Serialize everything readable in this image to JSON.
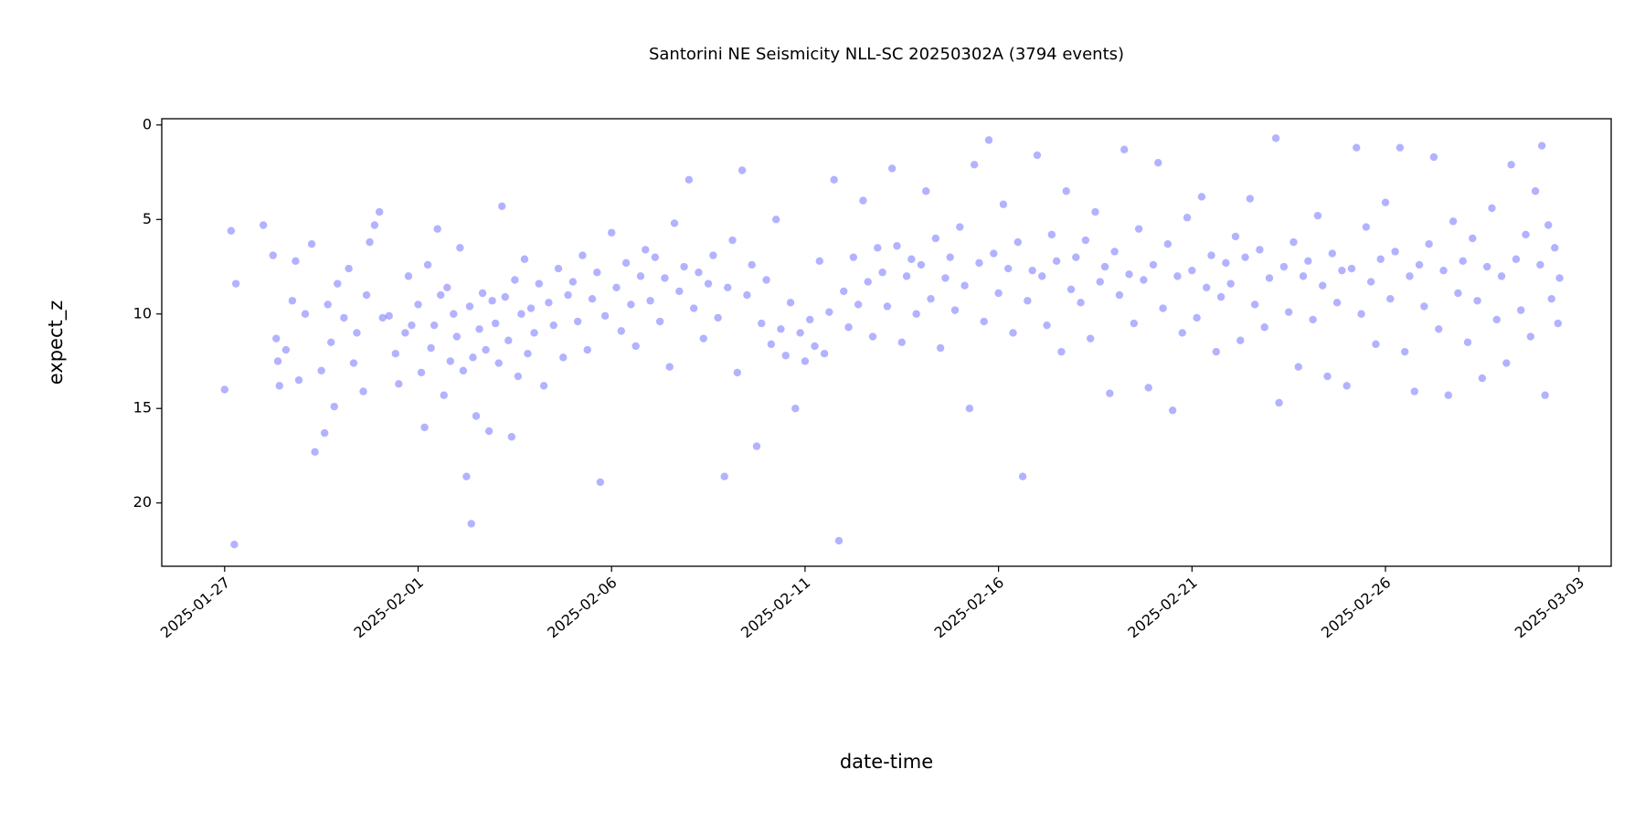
{
  "chart_data": {
    "type": "scatter",
    "title": "Santorini NE Seismicity NLL-SC 20250302A (3794 events)",
    "xlabel": "date-time",
    "ylabel": "expect_z",
    "color": "#0000ff",
    "xlim": [
      "2025-01-25T09:00",
      "2025-03-03T20:00"
    ],
    "xticks": [
      "2025-01-27",
      "2025-02-01",
      "2025-02-06",
      "2025-02-11",
      "2025-02-16",
      "2025-02-21",
      "2025-02-26",
      "2025-03-03"
    ],
    "ylim": [
      23.35,
      -0.33
    ],
    "yticks": [
      0,
      5,
      10,
      15,
      20
    ],
    "x": [
      "2025-01-27T00:00",
      "2025-01-27T04:00",
      "2025-01-27T06:00",
      "2025-01-27T07:00",
      "2025-01-28T00:00",
      "2025-01-28T06:00",
      "2025-01-28T08:00",
      "2025-01-28T09:00",
      "2025-01-28T10:00",
      "2025-01-28T14:00",
      "2025-01-28T18:00",
      "2025-01-28T20:00",
      "2025-01-28T22:00",
      "2025-01-29T02:00",
      "2025-01-29T06:00",
      "2025-01-29T08:00",
      "2025-01-29T12:00",
      "2025-01-29T14:00",
      "2025-01-29T16:00",
      "2025-01-29T18:00",
      "2025-01-29T20:00",
      "2025-01-29T22:00",
      "2025-01-30T02:00",
      "2025-01-30T05:00",
      "2025-01-30T08:00",
      "2025-01-30T10:00",
      "2025-01-30T14:00",
      "2025-01-30T16:00",
      "2025-01-30T18:00",
      "2025-01-30T21:00",
      "2025-01-31T00:00",
      "2025-01-31T02:00",
      "2025-01-31T06:00",
      "2025-01-31T10:00",
      "2025-01-31T12:00",
      "2025-01-31T16:00",
      "2025-01-31T18:00",
      "2025-01-31T20:00",
      "2025-02-01T00:00",
      "2025-02-01T02:00",
      "2025-02-01T04:00",
      "2025-02-01T06:00",
      "2025-02-01T08:00",
      "2025-02-01T10:00",
      "2025-02-01T12:00",
      "2025-02-01T14:00",
      "2025-02-01T16:00",
      "2025-02-01T18:00",
      "2025-02-01T20:00",
      "2025-02-01T22:00",
      "2025-02-02T00:00",
      "2025-02-02T02:00",
      "2025-02-02T04:00",
      "2025-02-02T06:00",
      "2025-02-02T08:00",
      "2025-02-02T09:00",
      "2025-02-02T10:00",
      "2025-02-02T12:00",
      "2025-02-02T14:00",
      "2025-02-02T16:00",
      "2025-02-02T18:00",
      "2025-02-02T20:00",
      "2025-02-02T22:00",
      "2025-02-03T00:00",
      "2025-02-03T02:00",
      "2025-02-03T04:00",
      "2025-02-03T06:00",
      "2025-02-03T08:00",
      "2025-02-03T10:00",
      "2025-02-03T12:00",
      "2025-02-03T14:00",
      "2025-02-03T16:00",
      "2025-02-03T18:00",
      "2025-02-03T20:00",
      "2025-02-03T22:00",
      "2025-02-04T00:00",
      "2025-02-04T03:00",
      "2025-02-04T06:00",
      "2025-02-04T09:00",
      "2025-02-04T12:00",
      "2025-02-04T15:00",
      "2025-02-04T18:00",
      "2025-02-04T21:00",
      "2025-02-05T00:00",
      "2025-02-05T03:00",
      "2025-02-05T06:00",
      "2025-02-05T09:00",
      "2025-02-05T12:00",
      "2025-02-05T15:00",
      "2025-02-05T17:00",
      "2025-02-05T20:00",
      "2025-02-06T00:00",
      "2025-02-06T03:00",
      "2025-02-06T06:00",
      "2025-02-06T09:00",
      "2025-02-06T12:00",
      "2025-02-06T15:00",
      "2025-02-06T18:00",
      "2025-02-06T21:00",
      "2025-02-07T00:00",
      "2025-02-07T03:00",
      "2025-02-07T06:00",
      "2025-02-07T09:00",
      "2025-02-07T12:00",
      "2025-02-07T15:00",
      "2025-02-07T18:00",
      "2025-02-07T21:00",
      "2025-02-08T00:00",
      "2025-02-08T03:00",
      "2025-02-08T06:00",
      "2025-02-08T09:00",
      "2025-02-08T12:00",
      "2025-02-08T15:00",
      "2025-02-08T18:00",
      "2025-02-08T22:00",
      "2025-02-09T00:00",
      "2025-02-09T03:00",
      "2025-02-09T06:00",
      "2025-02-09T09:00",
      "2025-02-09T12:00",
      "2025-02-09T15:00",
      "2025-02-09T18:00",
      "2025-02-09T21:00",
      "2025-02-10T00:00",
      "2025-02-10T03:00",
      "2025-02-10T06:00",
      "2025-02-10T09:00",
      "2025-02-10T12:00",
      "2025-02-10T15:00",
      "2025-02-10T18:00",
      "2025-02-10T21:00",
      "2025-02-11T00:00",
      "2025-02-11T03:00",
      "2025-02-11T06:00",
      "2025-02-11T09:00",
      "2025-02-11T12:00",
      "2025-02-11T15:00",
      "2025-02-11T18:00",
      "2025-02-11T21:00",
      "2025-02-12T00:00",
      "2025-02-12T03:00",
      "2025-02-12T06:00",
      "2025-02-12T09:00",
      "2025-02-12T12:00",
      "2025-02-12T15:00",
      "2025-02-12T18:00",
      "2025-02-12T21:00",
      "2025-02-13T00:00",
      "2025-02-13T03:00",
      "2025-02-13T06:00",
      "2025-02-13T09:00",
      "2025-02-13T12:00",
      "2025-02-13T15:00",
      "2025-02-13T18:00",
      "2025-02-13T21:00",
      "2025-02-14T00:00",
      "2025-02-14T03:00",
      "2025-02-14T06:00",
      "2025-02-14T09:00",
      "2025-02-14T12:00",
      "2025-02-14T15:00",
      "2025-02-14T18:00",
      "2025-02-14T21:00",
      "2025-02-15T00:00",
      "2025-02-15T03:00",
      "2025-02-15T06:00",
      "2025-02-15T09:00",
      "2025-02-15T12:00",
      "2025-02-15T15:00",
      "2025-02-15T18:00",
      "2025-02-15T21:00",
      "2025-02-16T00:00",
      "2025-02-16T03:00",
      "2025-02-16T06:00",
      "2025-02-16T09:00",
      "2025-02-16T12:00",
      "2025-02-16T15:00",
      "2025-02-16T18:00",
      "2025-02-16T21:00",
      "2025-02-17T00:00",
      "2025-02-17T03:00",
      "2025-02-17T06:00",
      "2025-02-17T09:00",
      "2025-02-17T12:00",
      "2025-02-17T15:00",
      "2025-02-17T18:00",
      "2025-02-17T21:00",
      "2025-02-18T00:00",
      "2025-02-18T03:00",
      "2025-02-18T06:00",
      "2025-02-18T09:00",
      "2025-02-18T12:00",
      "2025-02-18T15:00",
      "2025-02-18T18:00",
      "2025-02-18T21:00",
      "2025-02-19T00:00",
      "2025-02-19T03:00",
      "2025-02-19T06:00",
      "2025-02-19T09:00",
      "2025-02-19T12:00",
      "2025-02-19T15:00",
      "2025-02-19T18:00",
      "2025-02-19T21:00",
      "2025-02-20T00:00",
      "2025-02-20T03:00",
      "2025-02-20T06:00",
      "2025-02-20T09:00",
      "2025-02-20T12:00",
      "2025-02-20T15:00",
      "2025-02-20T18:00",
      "2025-02-20T21:00",
      "2025-02-21T00:00",
      "2025-02-21T03:00",
      "2025-02-21T06:00",
      "2025-02-21T09:00",
      "2025-02-21T12:00",
      "2025-02-21T15:00",
      "2025-02-21T18:00",
      "2025-02-21T21:00",
      "2025-02-22T00:00",
      "2025-02-22T03:00",
      "2025-02-22T06:00",
      "2025-02-22T09:00",
      "2025-02-22T12:00",
      "2025-02-22T15:00",
      "2025-02-22T18:00",
      "2025-02-22T21:00",
      "2025-02-23T00:00",
      "2025-02-23T04:00",
      "2025-02-23T06:00",
      "2025-02-23T09:00",
      "2025-02-23T12:00",
      "2025-02-23T15:00",
      "2025-02-23T18:00",
      "2025-02-23T21:00",
      "2025-02-24T00:00",
      "2025-02-24T03:00",
      "2025-02-24T06:00",
      "2025-02-24T09:00",
      "2025-02-24T12:00",
      "2025-02-24T15:00",
      "2025-02-24T18:00",
      "2025-02-24T21:00",
      "2025-02-25T00:00",
      "2025-02-25T03:00",
      "2025-02-25T06:00",
      "2025-02-25T09:00",
      "2025-02-25T12:00",
      "2025-02-25T15:00",
      "2025-02-25T18:00",
      "2025-02-25T21:00",
      "2025-02-26T00:00",
      "2025-02-26T03:00",
      "2025-02-26T06:00",
      "2025-02-26T09:00",
      "2025-02-26T12:00",
      "2025-02-26T15:00",
      "2025-02-26T18:00",
      "2025-02-26T21:00",
      "2025-02-27T00:00",
      "2025-02-27T03:00",
      "2025-02-27T06:00",
      "2025-02-27T09:00",
      "2025-02-27T12:00",
      "2025-02-27T15:00",
      "2025-02-27T18:00",
      "2025-02-27T21:00",
      "2025-02-28T00:00",
      "2025-02-28T03:00",
      "2025-02-28T06:00",
      "2025-02-28T09:00",
      "2025-02-28T12:00",
      "2025-02-28T15:00",
      "2025-02-28T18:00",
      "2025-02-28T21:00",
      "2025-03-01T00:00",
      "2025-03-01T03:00",
      "2025-03-01T06:00",
      "2025-03-01T09:00",
      "2025-03-01T12:00",
      "2025-03-01T15:00",
      "2025-03-01T18:00",
      "2025-03-01T21:00",
      "2025-03-02T00:00",
      "2025-03-02T01:00",
      "2025-03-02T03:00",
      "2025-03-02T05:00",
      "2025-03-02T07:00",
      "2025-03-02T09:00",
      "2025-03-02T11:00",
      "2025-03-02T12:00"
    ],
    "values": [
      14.0,
      5.6,
      22.2,
      8.4,
      5.3,
      6.9,
      11.3,
      12.5,
      13.8,
      11.9,
      9.3,
      7.2,
      13.5,
      10.0,
      6.3,
      17.3,
      13.0,
      16.3,
      9.5,
      11.5,
      14.9,
      8.4,
      10.2,
      7.6,
      12.6,
      11.0,
      14.1,
      9.0,
      6.2,
      5.3,
      4.6,
      10.2,
      10.1,
      12.1,
      13.7,
      11.0,
      8.0,
      10.6,
      9.5,
      13.1,
      16.0,
      7.4,
      11.8,
      10.6,
      5.5,
      9.0,
      14.3,
      8.6,
      12.5,
      10.0,
      11.2,
      6.5,
      13.0,
      18.6,
      9.6,
      21.1,
      12.3,
      15.4,
      10.8,
      8.9,
      11.9,
      16.2,
      9.3,
      10.5,
      12.6,
      4.3,
      9.1,
      11.4,
      16.5,
      8.2,
      13.3,
      10.0,
      7.1,
      12.1,
      9.7,
      11.0,
      8.4,
      13.8,
      9.4,
      10.6,
      7.6,
      12.3,
      9.0,
      8.3,
      10.4,
      6.9,
      11.9,
      9.2,
      7.8,
      18.9,
      10.1,
      5.7,
      8.6,
      10.9,
      7.3,
      9.5,
      11.7,
      8.0,
      6.6,
      9.3,
      7.0,
      10.4,
      8.1,
      12.8,
      5.2,
      8.8,
      7.5,
      2.9,
      9.7,
      7.8,
      11.3,
      8.4,
      6.9,
      10.2,
      18.6,
      8.6,
      6.1,
      13.1,
      2.4,
      9.0,
      7.4,
      17.0,
      10.5,
      8.2,
      11.6,
      5.0,
      10.8,
      12.2,
      9.4,
      15.0,
      11.0,
      12.5,
      10.3,
      11.7,
      7.2,
      12.1,
      9.9,
      2.9,
      22.0,
      8.8,
      10.7,
      7.0,
      9.5,
      4.0,
      8.3,
      11.2,
      6.5,
      7.8,
      9.6,
      2.3,
      6.4,
      11.5,
      8.0,
      7.1,
      10.0,
      7.4,
      3.5,
      9.2,
      6.0,
      11.8,
      8.1,
      7.0,
      9.8,
      5.4,
      8.5,
      15.0,
      2.1,
      7.3,
      10.4,
      0.8,
      6.8,
      8.9,
      4.2,
      7.6,
      11.0,
      6.2,
      18.6,
      9.3,
      7.7,
      1.6,
      8.0,
      10.6,
      5.8,
      7.2,
      12.0,
      3.5,
      8.7,
      7.0,
      9.4,
      6.1,
      11.3,
      4.6,
      8.3,
      7.5,
      14.2,
      6.7,
      9.0,
      1.3,
      7.9,
      10.5,
      5.5,
      8.2,
      13.9,
      7.4,
      2.0,
      9.7,
      6.3,
      15.1,
      8.0,
      11.0,
      4.9,
      7.7,
      10.2,
      3.8,
      8.6,
      6.9,
      12.0,
      9.1,
      7.3,
      8.4,
      5.9,
      11.4,
      7.0,
      3.9,
      9.5,
      6.6,
      10.7,
      8.1,
      0.7,
      14.7,
      7.5,
      9.9,
      6.2,
      12.8,
      8.0,
      7.2,
      10.3,
      4.8,
      8.5,
      13.3,
      6.8,
      9.4,
      7.7,
      13.8,
      7.6,
      1.2,
      10.0,
      5.4,
      8.3,
      11.6,
      7.1,
      4.1,
      9.2,
      6.7,
      1.2,
      12.0,
      8.0,
      14.1,
      7.4,
      9.6,
      6.3,
      1.7,
      10.8,
      7.7,
      14.3,
      5.1,
      8.9,
      7.2,
      11.5,
      6.0,
      9.3,
      13.4,
      7.5,
      4.4,
      10.3,
      8.0,
      12.6,
      2.1,
      7.1,
      9.8,
      5.8,
      11.2,
      3.5,
      7.4,
      1.1,
      14.3,
      5.3,
      9.2,
      6.5,
      10.5,
      8.1
    ]
  }
}
